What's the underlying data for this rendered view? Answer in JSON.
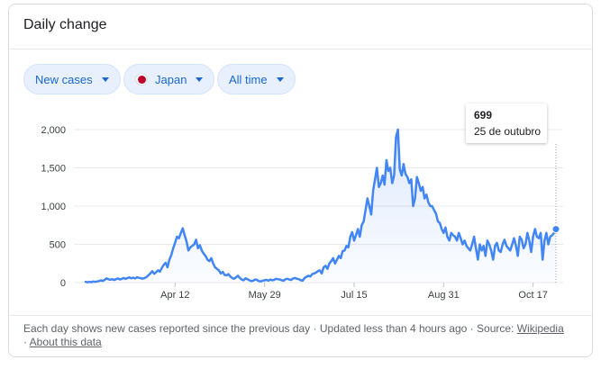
{
  "card": {
    "title": "Daily change"
  },
  "filters": {
    "metric": "New cases",
    "country": "Japan",
    "range": "All time"
  },
  "colors": {
    "line": "#4285f4",
    "chip_bg": "#e8f0fe",
    "chip_text": "#1967d2",
    "grid": "#e8eaed",
    "flag_red": "#bc002d"
  },
  "tooltip": {
    "value": "699",
    "date": "25 de outubro"
  },
  "footer": {
    "description": "Each day shows new cases reported since the previous day",
    "updated": "Updated less than 4 hours ago",
    "source_label": "Source:",
    "source_link": "Wikipedia",
    "about_link": "About this data"
  },
  "chart_data": {
    "type": "area",
    "title": "",
    "xlabel": "",
    "ylabel": "",
    "ylim": [
      0,
      2000
    ],
    "yticks": [
      "0",
      "500",
      "1,000",
      "1,500",
      "2,000"
    ],
    "ytick_values": [
      0,
      500,
      1000,
      1500,
      2000
    ],
    "xticks": [
      "Apr 12",
      "May 29",
      "Jul 15",
      "Aug 31",
      "Oct 17"
    ],
    "xtick_days": [
      47,
      94,
      141,
      188,
      235
    ],
    "x_start": "Feb 25",
    "grid": "horizontal",
    "series": [
      {
        "name": "",
        "values": [
          10,
          4,
          9,
          6,
          14,
          11,
          14,
          20,
          28,
          22,
          35,
          55,
          42,
          38,
          45,
          34,
          45,
          55,
          40,
          50,
          60,
          48,
          60,
          68,
          56,
          65,
          54,
          70,
          62,
          58,
          52,
          60,
          72,
          95,
          120,
          150,
          115,
          135,
          160,
          142,
          190,
          230,
          260,
          200,
          300,
          360,
          450,
          520,
          600,
          580,
          650,
          710,
          620,
          540,
          420,
          460,
          480,
          500,
          560,
          450,
          490,
          420,
          380,
          350,
          300,
          280,
          320,
          250,
          200,
          180,
          160,
          120,
          140,
          100,
          95,
          110,
          80,
          60,
          50,
          70,
          90,
          60,
          40,
          30,
          55,
          45,
          30,
          20,
          25,
          40,
          35,
          20,
          15,
          25,
          30,
          35,
          25,
          40,
          30,
          35,
          50,
          45,
          40,
          30,
          25,
          45,
          50,
          40,
          35,
          55,
          60,
          50,
          45,
          30,
          25,
          60,
          75,
          90,
          80,
          110,
          120,
          130,
          150,
          160,
          120,
          200,
          220,
          180,
          250,
          280,
          320,
          250,
          300,
          350,
          320,
          410,
          420,
          480,
          460,
          600,
          660,
          550,
          620,
          700,
          600,
          750,
          800,
          950,
          1100,
          1000,
          890,
          1200,
          1350,
          1500,
          1250,
          1300,
          1400,
          1280,
          1600,
          1460,
          1500,
          1300,
          1400,
          1900,
          2000,
          1480,
          1400,
          1550,
          1420,
          1380,
          1300,
          1350,
          1000,
          1100,
          1380,
          1300,
          1200,
          1250,
          1100,
          1150,
          1050,
          1000,
          1000,
          950,
          900,
          800,
          780,
          700,
          650,
          720,
          600,
          550,
          650,
          620,
          600,
          550,
          650,
          580,
          500,
          550,
          480,
          450,
          420,
          500,
          600,
          450,
          300,
          500,
          420,
          480,
          350,
          550,
          500,
          420,
          300,
          480,
          520,
          420,
          400,
          500,
          560,
          480,
          450,
          420,
          500,
          580,
          480,
          350,
          600,
          560,
          450,
          500,
          650,
          550,
          400,
          600,
          700,
          600,
          580,
          650,
          300,
          550,
          650,
          500,
          600,
          620,
          650,
          699
        ]
      }
    ]
  }
}
